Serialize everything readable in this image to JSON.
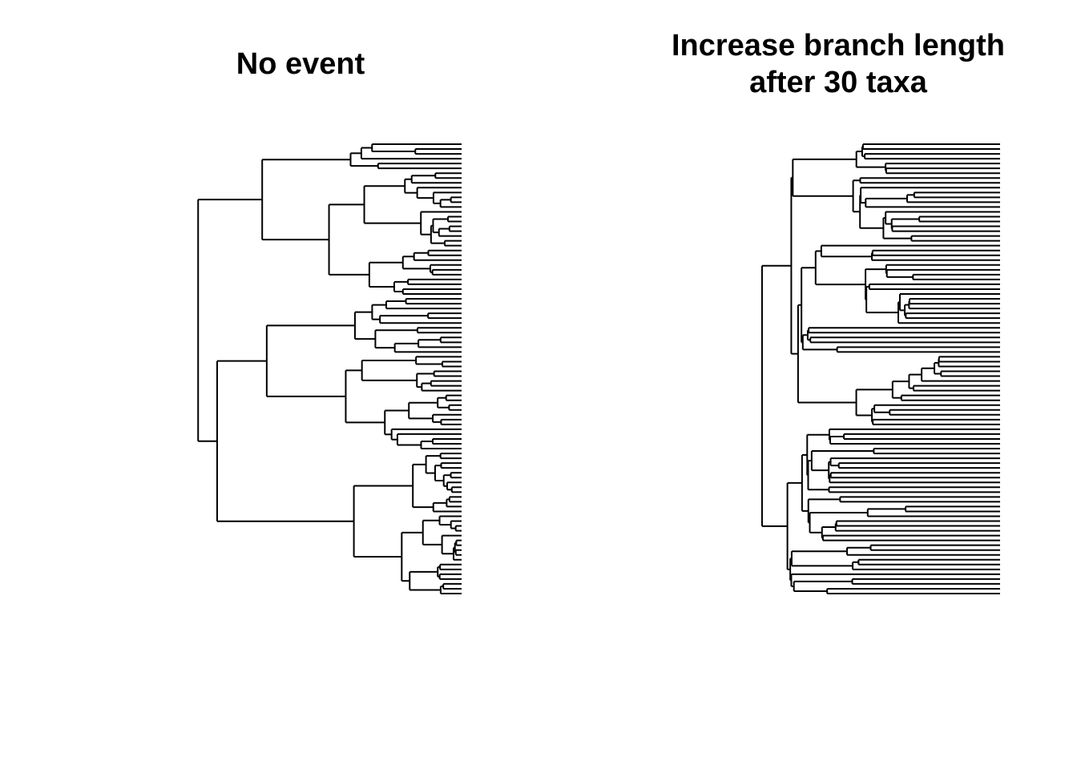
{
  "panels": [
    {
      "title_lines": [
        "No event"
      ],
      "tips": 94,
      "seed": 11,
      "shape": 0.0
    },
    {
      "title_lines": [
        "Increase branch length",
        "after 30 taxa"
      ],
      "tips": 94,
      "seed": 29,
      "shape": 3.2
    }
  ],
  "colors": {
    "line": "#000000",
    "background": "#ffffff"
  }
}
